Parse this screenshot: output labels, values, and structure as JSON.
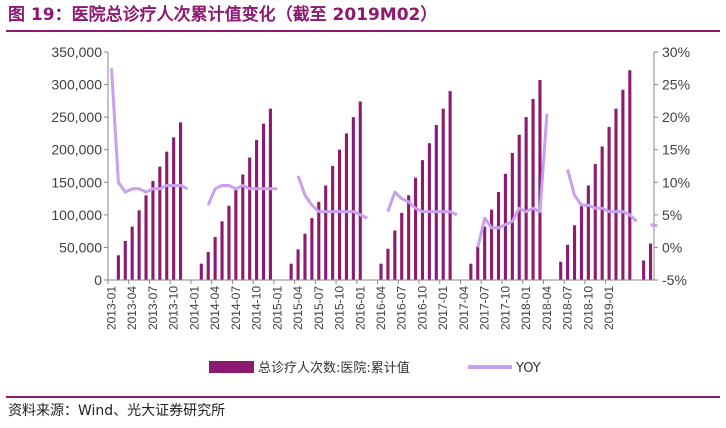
{
  "title": "图 19：医院总诊疗人次累计值变化（截至 2019M02）",
  "source": "资料来源：Wind、光大证券研究所",
  "colors": {
    "bar": "#8b1a70",
    "line": "#c8a0f0",
    "title": "#8b1a70"
  },
  "chart_data": {
    "type": "bar",
    "x_tick_labels": [
      "2013-01",
      "2013-04",
      "2013-07",
      "2013-10",
      "2014-01",
      "2014-04",
      "2014-07",
      "2014-10",
      "2015-01",
      "2015-04",
      "2015-07",
      "2015-10",
      "2016-01",
      "2016-04",
      "2016-07",
      "2016-10",
      "2017-01",
      "2017-04",
      "2017-07",
      "2017-10",
      "2018-01",
      "2018-04",
      "2018-07",
      "2018-10",
      "2019-01"
    ],
    "y_ticks": [
      "0",
      "50,000",
      "100,000",
      "150,000",
      "200,000",
      "250,000",
      "300,000",
      "350,000"
    ],
    "y2_ticks": [
      "-5%",
      "0%",
      "5%",
      "10%",
      "15%",
      "20%",
      "25%",
      "30%"
    ],
    "ylim": [
      0,
      350000
    ],
    "y2lim": [
      -5,
      30
    ],
    "grid": false,
    "legend_position": "bottom",
    "series": [
      {
        "name": "总诊疗人次数:医院:累计值",
        "type": "bar",
        "axis": "left",
        "values": [
          null,
          38000,
          60000,
          82000,
          107000,
          130000,
          152000,
          174000,
          197000,
          219000,
          242000,
          null,
          null,
          25000,
          43000,
          66000,
          90000,
          114000,
          138000,
          162000,
          188000,
          215000,
          240000,
          263000,
          null,
          null,
          25000,
          47000,
          71000,
          95000,
          120000,
          145000,
          175000,
          200000,
          225000,
          250000,
          274000,
          null,
          null,
          25000,
          48000,
          76000,
          103000,
          130000,
          157000,
          184000,
          210000,
          238000,
          263000,
          290000,
          null,
          null,
          25000,
          52000,
          82000,
          108000,
          135000,
          163000,
          195000,
          223000,
          250000,
          278000,
          307000,
          null,
          null,
          28000,
          54000,
          84000,
          116000,
          145000,
          178000,
          205000,
          235000,
          263000,
          292000,
          322000,
          null,
          30000,
          56000
        ]
      },
      {
        "name": "YOY",
        "type": "line",
        "axis": "right",
        "values": [
          27.5,
          10.0,
          8.5,
          9.0,
          9.0,
          8.5,
          9.0,
          9.0,
          9.5,
          9.5,
          9.5,
          9.0,
          null,
          null,
          6.5,
          9.0,
          9.5,
          9.5,
          9.0,
          9.5,
          9.0,
          9.0,
          9.0,
          9.0,
          9.0,
          null,
          null,
          11.0,
          8.0,
          6.5,
          5.5,
          5.5,
          5.5,
          5.5,
          5.5,
          5.5,
          5.0,
          4.5,
          null,
          null,
          5.5,
          8.5,
          7.5,
          7.0,
          6.0,
          5.5,
          5.5,
          5.5,
          5.5,
          5.5,
          5.0,
          null,
          null,
          0.0,
          4.5,
          3.0,
          3.0,
          3.5,
          4.0,
          6.0,
          5.5,
          6.0,
          5.5,
          20.5,
          null,
          null,
          12.0,
          8.0,
          6.5,
          6.5,
          6.0,
          6.0,
          5.5,
          5.5,
          5.5,
          5.0,
          4.0,
          null,
          3.5,
          3.3
        ]
      }
    ]
  }
}
